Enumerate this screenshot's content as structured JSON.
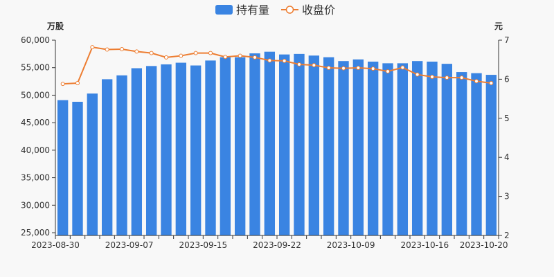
{
  "chart_data": {
    "type": "bar",
    "legend": {
      "position": "top-center",
      "items": [
        {
          "key": "holding",
          "label": "持有量",
          "marker": "bar"
        },
        {
          "key": "close",
          "label": "收盘价",
          "marker": "line-circle"
        }
      ]
    },
    "left_axis": {
      "unit_label": "万股",
      "ylim": [
        24500,
        60000
      ],
      "ticks": [
        25000,
        30000,
        35000,
        40000,
        45000,
        50000,
        55000,
        60000
      ],
      "tick_labels": [
        "25,000",
        "30,000",
        "35,000",
        "40,000",
        "45,000",
        "50,000",
        "55,000",
        "60,000"
      ]
    },
    "right_axis": {
      "unit_label": "元",
      "ylim": [
        2,
        7
      ],
      "ticks": [
        2,
        3,
        4,
        5,
        6,
        7
      ],
      "tick_labels": [
        "2",
        "3",
        "4",
        "5",
        "6",
        "7"
      ]
    },
    "x_tick_labels": [
      {
        "index": 0,
        "label": "2023-08-30"
      },
      {
        "index": 5,
        "label": "2023-09-07"
      },
      {
        "index": 10,
        "label": "2023-09-15"
      },
      {
        "index": 15,
        "label": "2023-09-22"
      },
      {
        "index": 20,
        "label": "2023-10-09"
      },
      {
        "index": 25,
        "label": "2023-10-16"
      },
      {
        "index": 29,
        "label": "2023-10-20"
      }
    ],
    "colors": {
      "bar": "#3a84e2",
      "line": "#ed7d31",
      "axis": "#333333",
      "text": "#333333"
    },
    "series": [
      {
        "name": "持有量",
        "type": "bar",
        "values": [
          49100,
          48800,
          50300,
          52900,
          53600,
          54900,
          55300,
          55600,
          55900,
          55400,
          56300,
          56900,
          56900,
          57600,
          57900,
          57400,
          57500,
          57200,
          56900,
          56200,
          56500,
          56100,
          55800,
          55800,
          56200,
          56100,
          55700,
          54200,
          54000,
          53700
        ]
      },
      {
        "name": "收盘价",
        "type": "line",
        "values": [
          5.88,
          5.9,
          6.82,
          6.76,
          6.77,
          6.71,
          6.67,
          6.56,
          6.6,
          6.67,
          6.67,
          6.57,
          6.6,
          6.56,
          6.48,
          6.47,
          6.38,
          6.36,
          6.29,
          6.28,
          6.29,
          6.27,
          6.2,
          6.3,
          6.12,
          6.06,
          6.04,
          6.04,
          5.95,
          5.9
        ]
      }
    ]
  }
}
